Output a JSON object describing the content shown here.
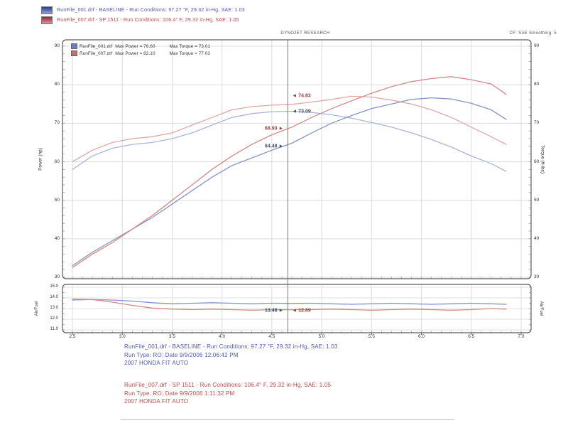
{
  "header": {
    "runs": [
      {
        "label": "RunFile_001.drf - BASELINE  -  Run Conditions: 97.27 °F, 29.32 in-Hg, SAE: 1.03"
      },
      {
        "label": "RunFile_007.drf - SP 1511  -  Run Conditions: 106.4° F, 29.32 in-Hg, SAE: 1.05"
      }
    ],
    "brand": "DYNOJET RESEARCH",
    "settings": "CF: SAE   Smoothing: 5"
  },
  "legend": {
    "rows": [
      {
        "file": "RunFile_001.drf",
        "power": "Max Power = 76.60",
        "torque": "Max Torque = 73.01"
      },
      {
        "file": "RunFile_007.drf",
        "power": "Max Power = 82.10",
        "torque": "Max Torque = 77.03"
      }
    ]
  },
  "run_colors": {
    "baseline": "#3f4a70",
    "sp1511": "#94403e"
  },
  "cursor": {
    "rpm": 4.66,
    "readouts": [
      {
        "plot": "main",
        "side": "right",
        "text": "74.83",
        "value": 74.83,
        "dy": -12,
        "run": "sp1511"
      },
      {
        "plot": "main",
        "side": "right",
        "text": "73.09",
        "value": 73.09,
        "dy": 0,
        "run": "baseline"
      },
      {
        "plot": "main",
        "side": "left",
        "text": "68.93",
        "value": 68.93,
        "dy": 2,
        "run": "sp1511"
      },
      {
        "plot": "main",
        "side": "left",
        "text": "64.48",
        "value": 64.48,
        "dy": 3,
        "run": "baseline"
      },
      {
        "plot": "afr",
        "side": "left",
        "text": "13.48",
        "value": 13.48,
        "dy": 10,
        "run": "baseline"
      },
      {
        "plot": "afr",
        "side": "right",
        "text": "12.89",
        "value": 12.89,
        "dy": 1,
        "run": "sp1511"
      }
    ]
  },
  "chart_data": [
    {
      "type": "line",
      "title": "Power and Torque vs Engine Speed (RPM x1000)",
      "x_axis": {
        "min": 2.4,
        "max": 7.1,
        "ticks": [
          2.5,
          3.0,
          3.5,
          4.0,
          4.5,
          5.0,
          5.5,
          6.0,
          6.5,
          7.0
        ]
      },
      "y_left": {
        "label": "Power (hp)",
        "ticks": [
          90,
          80,
          70,
          60,
          50,
          40,
          30
        ],
        "range": [
          30,
          90
        ]
      },
      "y_right": {
        "label": "Torque (ft-lbs)",
        "ticks": [
          90,
          80,
          70,
          60,
          50,
          40,
          30
        ],
        "range": [
          30,
          90
        ]
      },
      "grid": true,
      "x": [
        2.5,
        2.7,
        2.9,
        3.1,
        3.3,
        3.5,
        3.7,
        3.9,
        4.1,
        4.3,
        4.5,
        4.7,
        4.9,
        5.1,
        5.3,
        5.5,
        5.7,
        5.9,
        6.1,
        6.3,
        6.5,
        6.7,
        6.85
      ],
      "series": [
        {
          "name": "baseline-torque",
          "run": "RunFile_001.drf BASELINE",
          "unit": "ft-lbs",
          "color": "#aab6da",
          "values": [
            58,
            61.5,
            63.5,
            64.5,
            65,
            66,
            67.5,
            69.5,
            71.5,
            72.5,
            73,
            73.1,
            72.8,
            72.2,
            71.3,
            70.2,
            69,
            67.5,
            65.8,
            63.8,
            61.5,
            59.5,
            57.5
          ]
        },
        {
          "name": "sp1511-torque",
          "run": "RunFile_007.drf SP 1511",
          "unit": "ft-lbs",
          "color": "#dfa8a6",
          "values": [
            60,
            63,
            65,
            66,
            66.5,
            67.5,
            69.5,
            71.5,
            73.5,
            74.3,
            74.7,
            74.9,
            75.5,
            76.2,
            77.0,
            76.8,
            76,
            75,
            73.5,
            71.5,
            69,
            66.5,
            64.5
          ]
        },
        {
          "name": "baseline-power",
          "run": "RunFile_001.drf BASELINE",
          "unit": "hp",
          "color": "#8494c6",
          "values": [
            33,
            36.5,
            39.5,
            42.5,
            45.5,
            49,
            52.5,
            56,
            59,
            61,
            63,
            64.8,
            67.5,
            70,
            72,
            73.8,
            75,
            76.2,
            76.6,
            76.3,
            75.2,
            73.5,
            71
          ]
        },
        {
          "name": "sp1511-power",
          "run": "RunFile_007.drf SP 1511",
          "unit": "hp",
          "color": "#d48886",
          "values": [
            32.5,
            36,
            39,
            42.5,
            46,
            50,
            54,
            58,
            61.5,
            64.5,
            67,
            69,
            71.5,
            73.8,
            75.8,
            77.8,
            79.5,
            80.8,
            81.6,
            82.1,
            81.3,
            80.2,
            77.5
          ]
        }
      ]
    },
    {
      "type": "line",
      "title": "Air/Fuel ratio vs Engine Speed (RPM x1000)",
      "x_axis": {
        "min": 2.4,
        "max": 7.1,
        "ticks": [
          2.5,
          3.0,
          3.5,
          4.0,
          4.5,
          5.0,
          5.5,
          6.0,
          6.5,
          7.0
        ]
      },
      "y_axis": {
        "label": "Air/Fuel",
        "label_right": "Air/Fuel",
        "ticks": [
          15.0,
          14.0,
          13.0,
          12.0,
          11.0
        ],
        "range": [
          11,
          15
        ]
      },
      "grid": true,
      "x": [
        2.5,
        2.7,
        2.9,
        3.1,
        3.3,
        3.5,
        3.7,
        3.9,
        4.1,
        4.3,
        4.5,
        4.7,
        4.9,
        5.1,
        5.3,
        5.5,
        5.7,
        5.9,
        6.1,
        6.3,
        6.5,
        6.7,
        6.85
      ],
      "series": [
        {
          "name": "baseline-afr",
          "run": "RunFile_001.drf BASELINE",
          "unit": "AFR",
          "color": "#8494c6",
          "values": [
            13.8,
            13.85,
            13.8,
            13.7,
            13.55,
            13.45,
            13.5,
            13.55,
            13.5,
            13.45,
            13.5,
            13.48,
            13.5,
            13.45,
            13.4,
            13.45,
            13.5,
            13.45,
            13.4,
            13.45,
            13.5,
            13.45,
            13.4
          ]
        },
        {
          "name": "sp1511-afr",
          "run": "RunFile_007.drf SP 1511",
          "unit": "AFR",
          "color": "#d48886",
          "values": [
            13.9,
            13.85,
            13.6,
            13.3,
            13.05,
            12.95,
            12.9,
            12.95,
            12.9,
            12.85,
            12.9,
            12.89,
            12.9,
            12.95,
            12.9,
            12.85,
            12.9,
            12.95,
            12.9,
            12.85,
            12.9,
            13.0,
            12.95
          ]
        }
      ]
    }
  ],
  "footer": {
    "blocks": [
      {
        "lines": [
          "RunFile_001.drf - BASELINE  -  Run Conditions: 97.27 °F, 29.32 in-Hg, SAE: 1.03",
          "Run Type: RO; Date 9/9/2006 12:06:42 PM",
          "2007 HONDA FIT AUTO"
        ]
      },
      {
        "lines": [
          "RunFile_007.drf - SP 1511  -  Run Conditions: 106.4° F, 29.32 in-Hg, SAE: 1.05",
          "Run Type: RO; Date 9/9/2006 1:11:32 PM",
          "2007 HONDA FIT AUTO"
        ]
      }
    ]
  }
}
